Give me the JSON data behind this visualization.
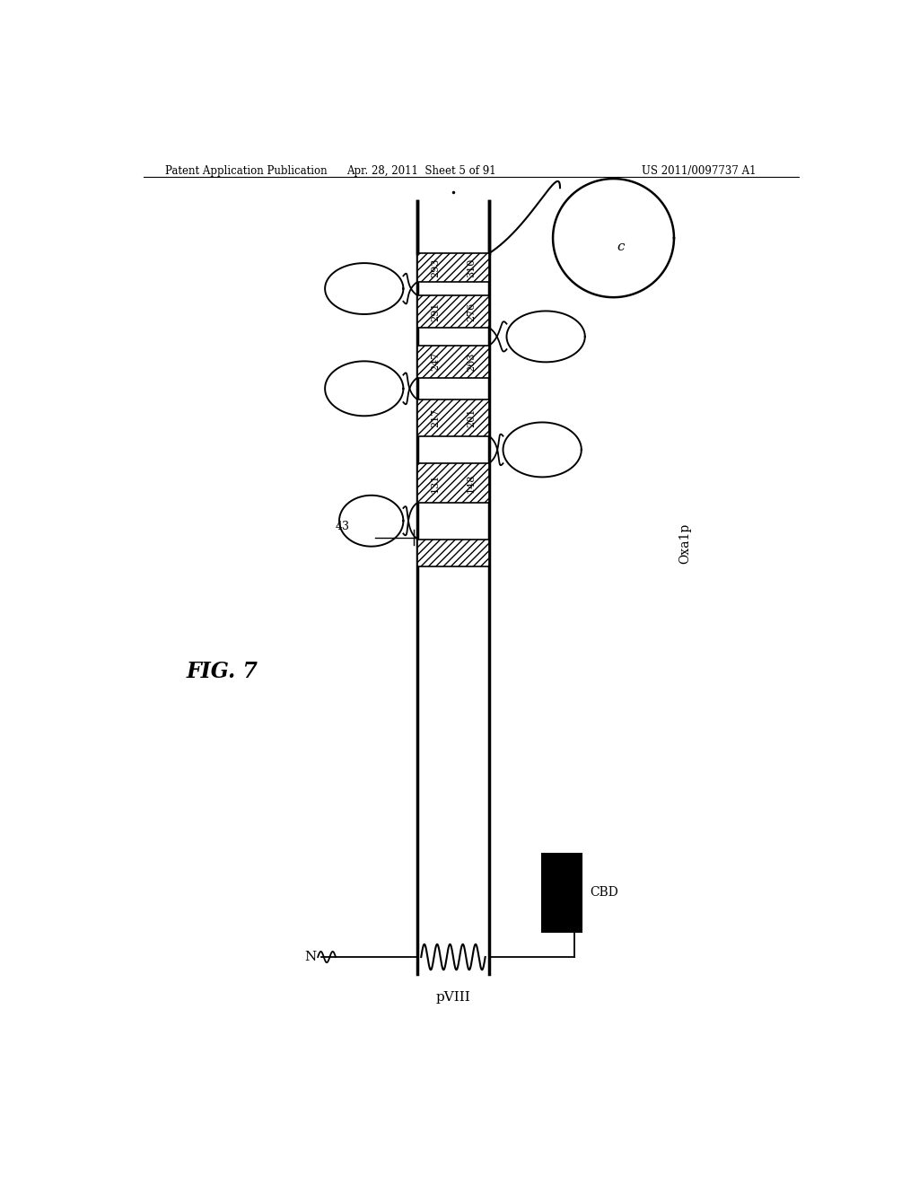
{
  "title_left": "Patent Application Publication",
  "title_center": "Apr. 28, 2011  Sheet 5 of 91",
  "title_right": "US 2011/0097737 A1",
  "fig_label": "FIG. 7",
  "protein_label": "pVIII",
  "right_label": "Oxa1p",
  "cbd_label": "CBD",
  "c_label": "c",
  "n_label": "N",
  "label_43": "43",
  "background_color": "#ffffff",
  "col_xl": 0.425,
  "col_xr": 0.525,
  "col_ybot": 0.088,
  "col_ytop": 0.935,
  "hatched_bands": [
    {
      "yb": 0.535,
      "yt": 0.565,
      "ll": "",
      "lr": ""
    },
    {
      "yb": 0.605,
      "yt": 0.648,
      "ll": "131",
      "lr": "148"
    },
    {
      "yb": 0.678,
      "yt": 0.718,
      "ll": "217",
      "lr": "201"
    },
    {
      "yb": 0.742,
      "yt": 0.777,
      "ll": "247",
      "lr": "263"
    },
    {
      "yb": 0.797,
      "yt": 0.832,
      "ll": "291",
      "lr": "276"
    },
    {
      "yb": 0.847,
      "yt": 0.878,
      "ll": "293",
      "lr": "310"
    }
  ]
}
